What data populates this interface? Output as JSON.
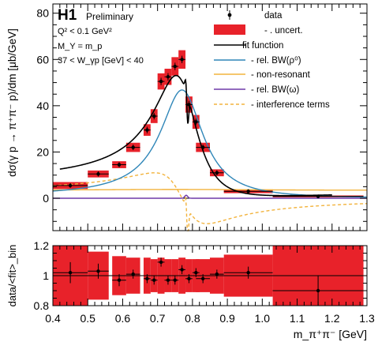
{
  "chart_data": [
    {
      "type": "line",
      "experiment": "H1",
      "status": "Preliminary",
      "conditions": [
        "Q² < 0.1 GeV²",
        "M_Y = m_p",
        "37 < W_γp [GeV] < 40"
      ],
      "ylabel": "dσ(γ p → π⁺π⁻ p)/dm [μb/GeV]",
      "xlim": [
        0.4,
        1.3
      ],
      "ylim": [
        -14,
        84
      ],
      "yticks": [
        0,
        20,
        40,
        60,
        80
      ],
      "colors": {
        "data": "#000000",
        "uncert": "#e8222a",
        "fit": "#000000",
        "rho": "#2f86b8",
        "nonres": "#f2b33d",
        "omega": "#6f3aa8",
        "interference": "#f2b33d"
      },
      "legend": {
        "data": "data",
        "uncert": "- . uncert.",
        "fit": "fit function",
        "rho": "- rel. BW(ρ⁰)",
        "nonres": "- non-resonant",
        "omega": "- rel. BW(ω)",
        "interference": "- interference terms"
      },
      "data_points": [
        {
          "x": 0.45,
          "y": 5.5,
          "xerr": 0.05,
          "yerr": 0.4,
          "uncert": 1.5
        },
        {
          "x": 0.53,
          "y": 10.5,
          "xerr": 0.03,
          "yerr": 0.5,
          "uncert": 1.5
        },
        {
          "x": 0.59,
          "y": 14.5,
          "xerr": 0.02,
          "yerr": 0.5,
          "uncert": 1.5
        },
        {
          "x": 0.63,
          "y": 22.0,
          "xerr": 0.02,
          "yerr": 0.6,
          "uncert": 2.0
        },
        {
          "x": 0.67,
          "y": 29.5,
          "xerr": 0.01,
          "yerr": 0.8,
          "uncert": 2.5
        },
        {
          "x": 0.69,
          "y": 35.5,
          "xerr": 0.01,
          "yerr": 0.8,
          "uncert": 3.0
        },
        {
          "x": 0.71,
          "y": 50.5,
          "xerr": 0.01,
          "yerr": 1.0,
          "uncert": 3.5
        },
        {
          "x": 0.73,
          "y": 52.5,
          "xerr": 0.01,
          "yerr": 1.0,
          "uncert": 3.5
        },
        {
          "x": 0.75,
          "y": 57.0,
          "xerr": 0.01,
          "yerr": 1.0,
          "uncert": 4.0
        },
        {
          "x": 0.77,
          "y": 60.0,
          "xerr": 0.01,
          "yerr": 1.0,
          "uncert": 4.0
        },
        {
          "x": 0.79,
          "y": 40.5,
          "xerr": 0.01,
          "yerr": 1.0,
          "uncert": 3.5
        },
        {
          "x": 0.81,
          "y": 33.0,
          "xerr": 0.01,
          "yerr": 0.8,
          "uncert": 3.0
        },
        {
          "x": 0.83,
          "y": 22.0,
          "xerr": 0.02,
          "yerr": 0.6,
          "uncert": 2.0
        },
        {
          "x": 0.87,
          "y": 11.0,
          "xerr": 0.02,
          "yerr": 0.5,
          "uncert": 1.5
        },
        {
          "x": 0.96,
          "y": 3.0,
          "xerr": 0.07,
          "yerr": 0.3,
          "uncert": 0.8
        },
        {
          "x": 1.16,
          "y": 0.8,
          "xerr": 0.13,
          "yerr": 0.2,
          "uncert": 0.4
        }
      ]
    },
    {
      "type": "scatter",
      "ylabel": "data/<fit>_bin",
      "xlabel": "m_π⁺π⁻ [GeV]",
      "xlim": [
        0.4,
        1.3
      ],
      "ylim": [
        0.8,
        1.2
      ],
      "xticks": [
        0.4,
        0.5,
        0.6,
        0.7,
        0.8,
        0.9,
        1.0,
        1.1,
        1.2,
        1.3
      ],
      "yticks": [
        0.8,
        1.0,
        1.2
      ],
      "reference_line": 1.0,
      "points": [
        {
          "x": 0.45,
          "y": 1.02,
          "xerr": 0.05,
          "yerr": 0.07,
          "band": 0.2
        },
        {
          "x": 0.53,
          "y": 1.03,
          "xerr": 0.03,
          "yerr": 0.05,
          "band": 0.16
        },
        {
          "x": 0.59,
          "y": 0.97,
          "xerr": 0.02,
          "yerr": 0.04,
          "band": 0.13
        },
        {
          "x": 0.63,
          "y": 1.01,
          "xerr": 0.02,
          "yerr": 0.03,
          "band": 0.12
        },
        {
          "x": 0.67,
          "y": 0.98,
          "xerr": 0.01,
          "yerr": 0.03,
          "band": 0.12
        },
        {
          "x": 0.69,
          "y": 0.97,
          "xerr": 0.01,
          "yerr": 0.03,
          "band": 0.11
        },
        {
          "x": 0.71,
          "y": 1.09,
          "xerr": 0.01,
          "yerr": 0.03,
          "band": 0.12
        },
        {
          "x": 0.73,
          "y": 0.97,
          "xerr": 0.01,
          "yerr": 0.03,
          "band": 0.11
        },
        {
          "x": 0.75,
          "y": 0.97,
          "xerr": 0.01,
          "yerr": 0.03,
          "band": 0.11
        },
        {
          "x": 0.77,
          "y": 1.04,
          "xerr": 0.01,
          "yerr": 0.03,
          "band": 0.12
        },
        {
          "x": 0.79,
          "y": 0.98,
          "xerr": 0.01,
          "yerr": 0.03,
          "band": 0.11
        },
        {
          "x": 0.81,
          "y": 1.02,
          "xerr": 0.01,
          "yerr": 0.03,
          "band": 0.11
        },
        {
          "x": 0.83,
          "y": 0.98,
          "xerr": 0.02,
          "yerr": 0.03,
          "band": 0.11
        },
        {
          "x": 0.87,
          "y": 1.01,
          "xerr": 0.02,
          "yerr": 0.03,
          "band": 0.12
        },
        {
          "x": 0.96,
          "y": 1.02,
          "xerr": 0.07,
          "yerr": 0.04,
          "band": 0.14
        },
        {
          "x": 1.16,
          "y": 0.9,
          "xerr": 0.13,
          "yerr": 0.1,
          "band": 0.2
        }
      ]
    }
  ]
}
